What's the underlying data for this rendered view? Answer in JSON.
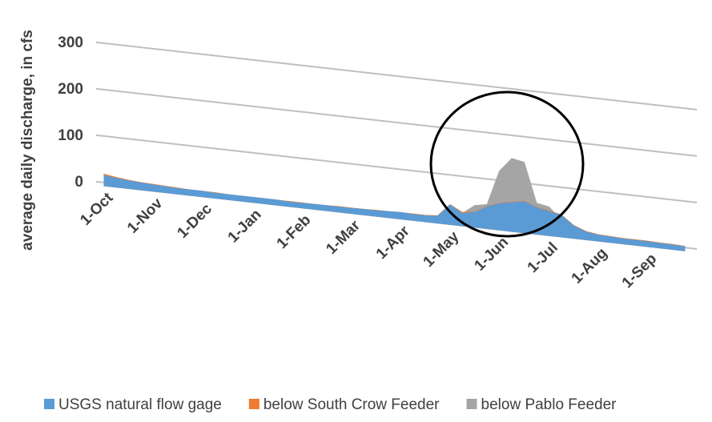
{
  "chart_data": {
    "type": "area",
    "y_label": "average daily discharge, in cfs",
    "categories": [
      "1-Oct",
      null,
      null,
      null,
      "1-Nov",
      null,
      null,
      null,
      "1-Dec",
      null,
      null,
      null,
      "1-Jan",
      null,
      null,
      null,
      "1-Feb",
      null,
      null,
      null,
      "1-Mar",
      null,
      null,
      null,
      "1-Apr",
      null,
      null,
      null,
      "1-May",
      null,
      null,
      null,
      "1-Jun",
      null,
      null,
      null,
      "1-Jul",
      null,
      null,
      null,
      "1-Aug",
      null,
      null,
      null,
      "1-Sep",
      null,
      null,
      null
    ],
    "series": [
      {
        "name": "below Pablo Feeder",
        "color": "#a5a5a5",
        "values": [
          16,
          13,
          10,
          8,
          7,
          6,
          5,
          5,
          5,
          4,
          4,
          4,
          4,
          4,
          4,
          3,
          3,
          4,
          4,
          4,
          4,
          5,
          5,
          6,
          7,
          6,
          6,
          8,
          30,
          20,
          40,
          45,
          120,
          150,
          145,
          60,
          55,
          30,
          15,
          10,
          6,
          5,
          4,
          4,
          4,
          3,
          3,
          2
        ]
      },
      {
        "name": "below South Crow Feeder",
        "color": "#ed7d31",
        "values": [
          18,
          14,
          11,
          9,
          8,
          7,
          6,
          5,
          5,
          5,
          4,
          4,
          4,
          4,
          4,
          4,
          4,
          4,
          4,
          5,
          5,
          5,
          6,
          6,
          7,
          7,
          7,
          9,
          36,
          22,
          26,
          41,
          51,
          56,
          61,
          51,
          46,
          41,
          21,
          11,
          7,
          6,
          5,
          5,
          5,
          4,
          4,
          3
        ]
      },
      {
        "name": "USGS natural flow gage",
        "color": "#5b9bd5",
        "values": [
          15,
          12,
          10,
          8,
          7,
          6,
          5,
          5,
          5,
          4,
          4,
          4,
          4,
          4,
          4,
          3,
          3,
          4,
          4,
          4,
          4,
          5,
          5,
          6,
          7,
          6,
          6,
          8,
          35,
          20,
          25,
          40,
          50,
          55,
          60,
          50,
          45,
          40,
          20,
          10,
          6,
          5,
          4,
          4,
          4,
          3,
          3,
          2
        ]
      }
    ],
    "ylim": [
      0,
      300
    ],
    "yticks": [
      0,
      100,
      200,
      300
    ],
    "grid": true,
    "legend": "bottom"
  }
}
